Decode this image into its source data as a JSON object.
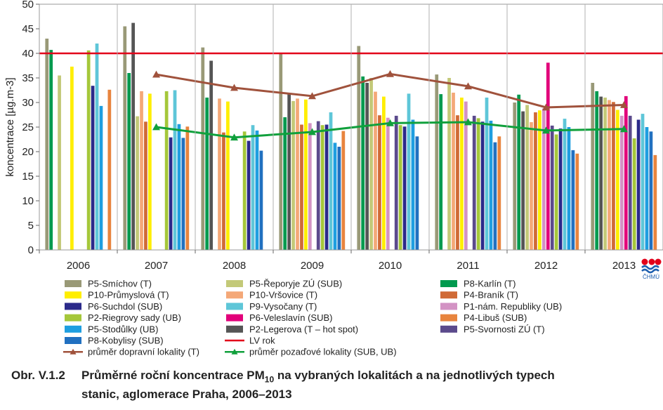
{
  "chart_data": {
    "type": "bar",
    "ylabel": "koncentrace [µg.m-3]",
    "ylim": [
      0,
      50
    ],
    "yticks": [
      0,
      5,
      10,
      15,
      20,
      25,
      30,
      35,
      40,
      45,
      50
    ],
    "grid": "vertical separators between years",
    "legend_position": "bottom",
    "categories": [
      "2006",
      "2007",
      "2008",
      "2009",
      "2010",
      "2011",
      "2012",
      "2013"
    ],
    "series": [
      {
        "name": "P5-Smíchov (T)",
        "color": "#999977",
        "values": [
          43,
          45.5,
          41.2,
          40,
          41.5,
          35.7,
          30,
          34
        ]
      },
      {
        "name": "P8-Karlín (T)",
        "color": "#009a4e",
        "values": [
          40.7,
          36,
          31,
          27,
          35.3,
          31.7,
          31.6,
          32.3
        ]
      },
      {
        "name": "P2-Legerova (T – hot spot)",
        "color": "#555555",
        "values": [
          null,
          46.2,
          38.5,
          31.7,
          34,
          null,
          28.2,
          31.2
        ]
      },
      {
        "name": "P5-Řeporyje ZÚ (SUB)",
        "color": "#c3c978",
        "values": [
          35.5,
          27.2,
          null,
          30.3,
          35,
          35,
          29.5,
          31
        ]
      },
      {
        "name": "P10-Vršovice (T)",
        "color": "#f4a878",
        "values": [
          null,
          32.3,
          30.8,
          30.8,
          32.2,
          32,
          26,
          30.5
        ]
      },
      {
        "name": "P4-Braník (T)",
        "color": "#d06a36",
        "values": [
          null,
          26.1,
          23.9,
          25.5,
          27.4,
          27.4,
          28,
          30.1
        ]
      },
      {
        "name": "P10-Průmyslová (T)",
        "color": "#ffee00",
        "values": [
          37.3,
          31.8,
          30.2,
          30.6,
          31.2,
          31,
          28.4,
          28.5
        ]
      },
      {
        "name": "P1-nám. Republiky (UB)",
        "color": "#d393c4",
        "values": [
          null,
          null,
          null,
          25.8,
          26.9,
          30.2,
          28.8,
          27.3
        ]
      },
      {
        "name": "P6-Veleslavín (SUB)",
        "color": "#e2007a",
        "values": [
          null,
          null,
          null,
          null,
          null,
          null,
          38.1,
          31.3
        ]
      },
      {
        "name": "P5-Svornosti ZÚ (T)",
        "color": "#5b4a8c",
        "values": [
          null,
          null,
          null,
          26.2,
          27.3,
          27.3,
          25.3,
          27.3
        ]
      },
      {
        "name": "P2-Riegrovy sady (UB)",
        "color": "#a5c73a",
        "values": [
          40.6,
          32.3,
          24.1,
          25.4,
          25.4,
          26.8,
          23.5,
          22.7
        ]
      },
      {
        "name": "P6-Suchdol (SUB)",
        "color": "#2b2a8a",
        "values": [
          33.4,
          22.9,
          22.2,
          25.5,
          25.1,
          26.1,
          24.7,
          26.5
        ]
      },
      {
        "name": "P9-Vysočany (T)",
        "color": "#5ec6d8",
        "values": [
          42,
          32.5,
          25.4,
          28,
          31.8,
          31,
          26.7,
          27.7
        ]
      },
      {
        "name": "P5-Stodůlky (UB)",
        "color": "#1e9ee0",
        "values": [
          29.3,
          25.6,
          24.3,
          21.8,
          26.5,
          26.3,
          25,
          25
        ]
      },
      {
        "name": "P8-Kobylisy (SUB)",
        "color": "#2170c0",
        "values": [
          null,
          22.8,
          20.2,
          21,
          23.1,
          21.9,
          20.3,
          24.1
        ]
      },
      {
        "name": "P4-Libuš (SUB)",
        "color": "#e8843e",
        "values": [
          32.6,
          25.1,
          null,
          24.2,
          null,
          23.1,
          19.6,
          19.3
        ]
      }
    ],
    "lines": [
      {
        "name": "průměr dopravní lokality (T)",
        "color": "#a0523c",
        "marker": "triangle",
        "values": [
          null,
          35.7,
          33,
          31.3,
          35.8,
          33.3,
          29,
          29.5
        ]
      },
      {
        "name": "průměr pozaďové lokality (SUB, UB)",
        "color": "#10a03c",
        "marker": "triangle",
        "values": [
          null,
          25,
          22.9,
          24,
          25.8,
          26,
          24.3,
          24.6
        ]
      }
    ],
    "reference_line": {
      "name": "LV rok",
      "color": "#e2001a",
      "value": 40
    }
  },
  "legend": {
    "columns": [
      [
        "P5-Smíchov (T)",
        "P10-Průmyslová (T)",
        "P6-Suchdol (SUB)",
        "P2-Riegrovy sady (UB)",
        "P5-Stodůlky (UB)",
        "P8-Kobylisy (SUB)",
        "průměr dopravní lokality (T)"
      ],
      [
        "P5-Řeporyje ZÚ (SUB)",
        "P10-Vršovice (T)",
        "P9-Vysočany (T)",
        "P6-Veleslavín (SUB)",
        "P2-Legerova (T – hot spot)",
        "LV rok",
        "průměr pozaďové lokality (SUB, UB)"
      ],
      [
        "P8-Karlín (T)",
        "P4-Braník (T)",
        "P1-nám. Republiky (UB)",
        "P4-Libuš (SUB)",
        "P5-Svornosti ZÚ (T)"
      ]
    ]
  },
  "logo": {
    "text": "ČHMÚ"
  },
  "caption": {
    "number": "Obr. V.1.2",
    "text_before_sub": "Průměrné roční koncentrace PM",
    "subscript": "10",
    "text_after_sub": " na vybraných lokalitách a na jednotlivých typech",
    "line2": "stanic, aglomerace Praha, 2006–2013"
  }
}
